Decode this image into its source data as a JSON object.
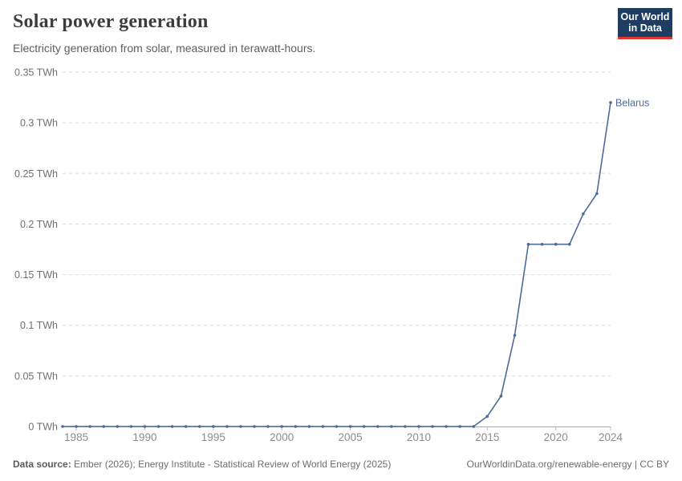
{
  "header": {
    "title": "Solar power generation",
    "subtitle": "Electricity generation from solar, measured in terawatt-hours."
  },
  "logo": {
    "line1": "Our World",
    "line2": "in Data",
    "bg": "#1d3d63",
    "accent": "#e0362c"
  },
  "footer": {
    "source_label": "Data source:",
    "source_text": " Ember (2026); Energy Institute - Statistical Review of World Energy (2025)",
    "credit": "OurWorldinData.org/renewable-energy | CC BY"
  },
  "colors": {
    "line": "#4c6a9c",
    "grid": "#dddddd",
    "axis": "#a8a8a8",
    "tick": "#bdbdbd",
    "y_label": "#6f6f6f",
    "x_label": "#8c8c8c"
  },
  "chart_data": {
    "type": "line",
    "title": "Solar power generation",
    "xlabel": "",
    "ylabel": "TWh",
    "xlim": [
      1984,
      2024
    ],
    "ylim": [
      0,
      0.35
    ],
    "grid": "horizontal-dashed",
    "legend": "end-of-line-label",
    "x": [
      1984,
      1985,
      1986,
      1987,
      1988,
      1989,
      1990,
      1991,
      1992,
      1993,
      1994,
      1995,
      1996,
      1997,
      1998,
      1999,
      2000,
      2001,
      2002,
      2003,
      2004,
      2005,
      2006,
      2007,
      2008,
      2009,
      2010,
      2011,
      2012,
      2013,
      2014,
      2015,
      2016,
      2017,
      2018,
      2019,
      2020,
      2021,
      2022,
      2023,
      2024
    ],
    "series": [
      {
        "name": "Belarus",
        "color": "#4c6a9c",
        "values": [
          0,
          0,
          0,
          0,
          0,
          0,
          0,
          0,
          0,
          0,
          0,
          0,
          0,
          0,
          0,
          0,
          0,
          0,
          0,
          0,
          0,
          0,
          0,
          0,
          0,
          0,
          0,
          0,
          0,
          0,
          0,
          0.01,
          0.03,
          0.09,
          0.18,
          0.18,
          0.18,
          0.18,
          0.21,
          0.23,
          0.32
        ]
      }
    ],
    "x_ticks": [
      {
        "v": 1985,
        "label": "1985"
      },
      {
        "v": 1990,
        "label": "1990"
      },
      {
        "v": 1995,
        "label": "1995"
      },
      {
        "v": 2000,
        "label": "2000"
      },
      {
        "v": 2005,
        "label": "2005"
      },
      {
        "v": 2010,
        "label": "2010"
      },
      {
        "v": 2015,
        "label": "2015"
      },
      {
        "v": 2020,
        "label": "2020"
      },
      {
        "v": 2024,
        "label": "2024"
      }
    ],
    "y_ticks": [
      {
        "v": 0,
        "label": "0 TWh"
      },
      {
        "v": 0.05,
        "label": "0.05 TWh"
      },
      {
        "v": 0.1,
        "label": "0.1 TWh"
      },
      {
        "v": 0.15,
        "label": "0.15 TWh"
      },
      {
        "v": 0.2,
        "label": "0.2 TWh"
      },
      {
        "v": 0.25,
        "label": "0.25 TWh"
      },
      {
        "v": 0.3,
        "label": "0.3 TWh"
      },
      {
        "v": 0.35,
        "label": "0.35 TWh"
      }
    ]
  }
}
